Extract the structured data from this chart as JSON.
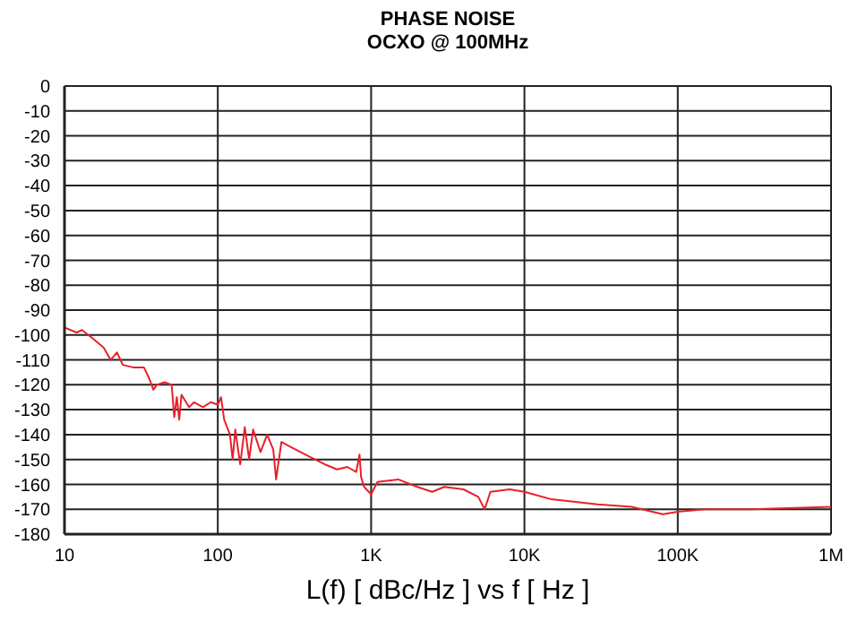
{
  "chart_data": {
    "type": "line",
    "title": "PHASE NOISE",
    "subtitle": "OCXO @ 100MHz",
    "xlabel": "L(f) [ dBc/Hz ]  vs  f [ Hz ]",
    "log": "x",
    "grid": true,
    "marker": "none",
    "line_style": "solid",
    "xlim": [
      10,
      1000000
    ],
    "xticks": [
      10,
      100,
      {
        "value": 1000,
        "label": "1K"
      },
      {
        "value": 10000,
        "label": "10K"
      },
      {
        "value": 100000,
        "label": "100K"
      },
      {
        "value": 1000000,
        "label": "1M"
      }
    ],
    "ylim": [
      -180,
      0
    ],
    "yticks": [
      -180,
      -170,
      -160,
      -150,
      -140,
      -130,
      -120,
      -110,
      -100,
      -90,
      -80,
      -70,
      -60,
      -50,
      -40,
      -30,
      -20,
      -10,
      0
    ],
    "x": [
      10,
      12,
      13,
      15,
      18,
      20,
      22,
      24,
      28,
      33,
      36,
      38,
      40,
      45,
      50,
      52,
      54,
      56,
      58,
      65,
      70,
      80,
      90,
      100,
      105,
      110,
      120,
      125,
      130,
      140,
      150,
      160,
      170,
      190,
      210,
      230,
      240,
      260,
      300,
      400,
      500,
      600,
      700,
      800,
      840,
      860,
      900,
      1000,
      1100,
      1500,
      2000,
      2500,
      3000,
      4000,
      5000,
      5500,
      6000,
      8000,
      10000,
      15000,
      30000,
      50000,
      80000,
      100000,
      150000,
      300000,
      1000000
    ],
    "series": [
      {
        "color": "#e8202a",
        "values": [
          -97,
          -99,
          -98,
          -101,
          -105,
          -110,
          -107,
          -112,
          -113,
          -113,
          -118,
          -122,
          -120,
          -119,
          -120,
          -133,
          -125,
          -134,
          -124,
          -129,
          -127,
          -129,
          -127,
          -128,
          -125,
          -134,
          -140,
          -150,
          -138,
          -152,
          -137,
          -150,
          -138,
          -147,
          -140,
          -146,
          -158,
          -143,
          -145,
          -149,
          -152,
          -154,
          -153,
          -155,
          -148,
          -157,
          -161,
          -164,
          -159,
          -158,
          -161,
          -163,
          -161,
          -162,
          -165,
          -170,
          -163,
          -162,
          -163,
          -166,
          -168,
          -169,
          -172,
          -171,
          -170,
          -170,
          -169
        ]
      }
    ]
  }
}
